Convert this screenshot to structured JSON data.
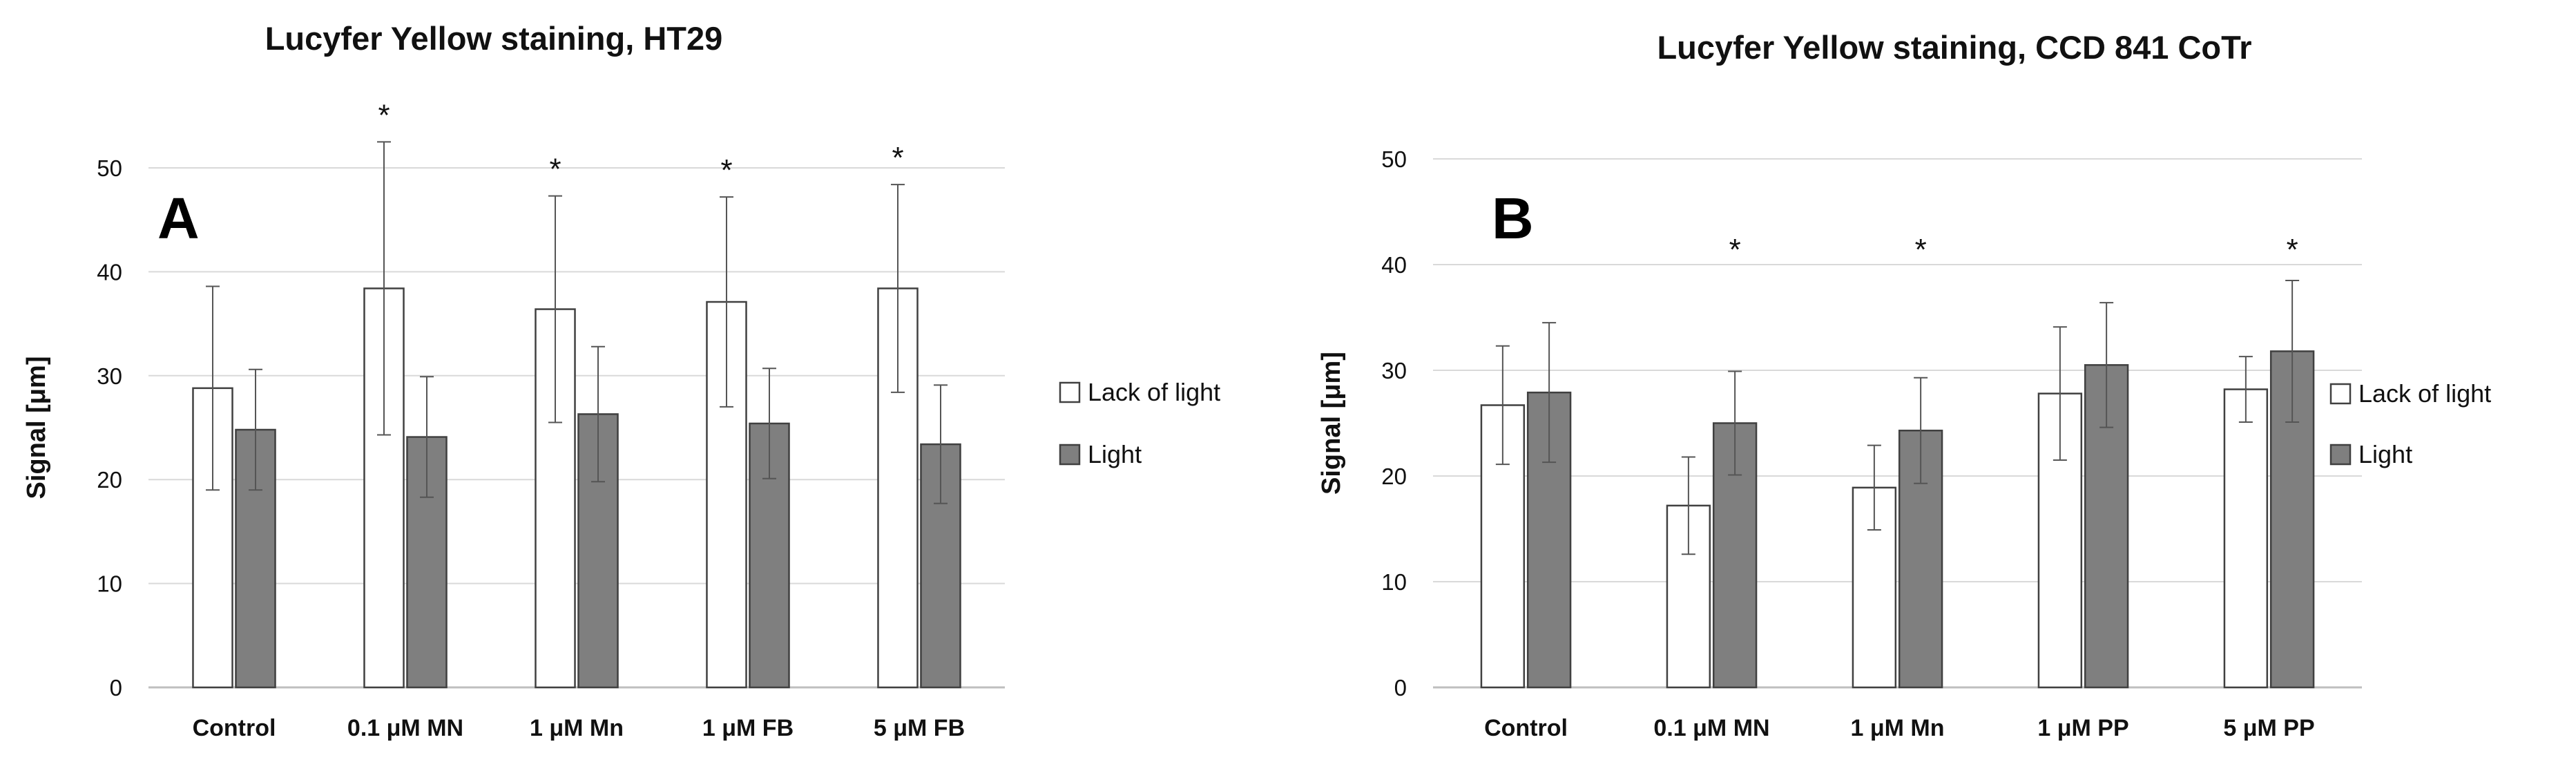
{
  "chart_data": [
    {
      "type": "bar",
      "panel_label": "A",
      "title": "Lucyfer Yellow staining, HT29",
      "ylabel": "Signal [μm]",
      "xlabel": "",
      "ylim": [
        0,
        50
      ],
      "yticks": [
        0,
        10,
        20,
        30,
        40,
        50
      ],
      "grid": true,
      "legend_position": "right",
      "categories": [
        "Control",
        "0.1 μM MN",
        "1 μM Mn",
        "1 μM FB",
        "5 μM FB"
      ],
      "series": [
        {
          "name": "Lack of light",
          "color": "#ffffff",
          "values": [
            28.8,
            38.4,
            36.4,
            37.1,
            38.4
          ],
          "errors": [
            9.8,
            14.1,
            10.9,
            10.1,
            10.0
          ]
        },
        {
          "name": "Light",
          "color": "#7f7f7f",
          "values": [
            24.8,
            24.1,
            26.3,
            25.4,
            23.4
          ],
          "errors": [
            5.8,
            5.8,
            6.5,
            5.3,
            5.7
          ]
        }
      ],
      "significance": [
        {
          "category": "0.1 μM MN",
          "series": "Lack of light",
          "text": "*"
        },
        {
          "category": "1 μM Mn",
          "series": "Lack of light",
          "text": "*"
        },
        {
          "category": "1 μM FB",
          "series": "Lack of light",
          "text": "*"
        },
        {
          "category": "5 μM FB",
          "series": "Lack of light",
          "text": "*"
        }
      ]
    },
    {
      "type": "bar",
      "panel_label": "B",
      "title": "Lucyfer Yellow staining, CCD 841 CoTr",
      "ylabel": "Signal [μm]",
      "xlabel": "",
      "ylim": [
        0,
        50
      ],
      "yticks": [
        0,
        10,
        20,
        30,
        40,
        50
      ],
      "grid": true,
      "legend_position": "right",
      "categories": [
        "Control",
        "0.1 μM MN",
        "1 μM Mn",
        "1 μM PP",
        "5 μM PP"
      ],
      "series": [
        {
          "name": "Lack of light",
          "color": "#ffffff",
          "values": [
            26.7,
            17.2,
            18.9,
            27.8,
            28.2
          ],
          "errors": [
            5.6,
            4.6,
            4.0,
            6.3,
            3.1
          ]
        },
        {
          "name": "Light",
          "color": "#7f7f7f",
          "values": [
            27.9,
            25.0,
            24.3,
            30.5,
            31.8
          ],
          "errors": [
            6.6,
            4.9,
            5.0,
            5.9,
            6.7
          ]
        }
      ],
      "significance": [
        {
          "category": "0.1 μM MN",
          "series": "Light",
          "text": "*"
        },
        {
          "category": "1 μM Mn",
          "series": "Light",
          "text": "*"
        },
        {
          "category": "5 μM PP",
          "series": "Light",
          "text": "*"
        }
      ]
    }
  ]
}
